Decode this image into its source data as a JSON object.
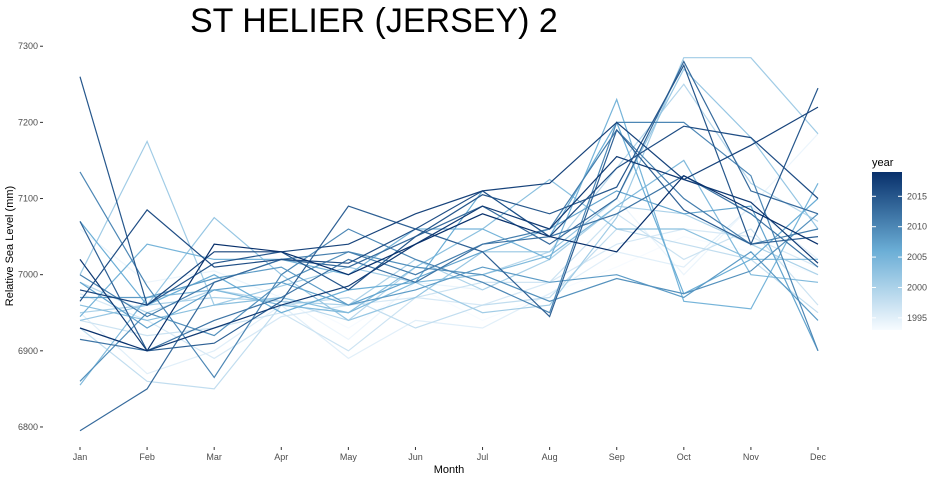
{
  "chart_data": {
    "type": "line",
    "title": "ST HELIER (JERSEY) 2",
    "xlabel": "Month",
    "ylabel": "Relative Sea Level (mm)",
    "categories": [
      "Jan",
      "Feb",
      "Mar",
      "Apr",
      "May",
      "Jun",
      "Jul",
      "Aug",
      "Sep",
      "Oct",
      "Nov",
      "Dec"
    ],
    "ylim": [
      6775,
      7320
    ],
    "yticks": [
      6800,
      6900,
      7000,
      7100,
      7200,
      7300
    ],
    "grid": false,
    "legend": {
      "title": "year",
      "position": "right",
      "range": [
        1993,
        2019
      ],
      "ticks": [
        1995,
        2000,
        2005,
        2010,
        2015
      ],
      "color_low": "#f7fbff",
      "color_high": "#08306b"
    },
    "series": [
      {
        "year": 1993,
        "values": [
          6920,
          6905,
          6935,
          6975,
          6930,
          6985,
          6940,
          6975,
          7010,
          7050,
          7030,
          7000
        ]
      },
      {
        "year": 1994,
        "values": [
          7060,
          6990,
          7005,
          6970,
          6915,
          6990,
          6980,
          7020,
          7100,
          7000,
          7090,
          7185
        ]
      },
      {
        "year": 1995,
        "values": [
          6950,
          6870,
          6900,
          6960,
          6890,
          6940,
          6930,
          6975,
          7030,
          7010,
          7090,
          7020
        ]
      },
      {
        "year": 1996,
        "values": [
          6975,
          6940,
          6890,
          6945,
          6960,
          6970,
          6960,
          6990,
          7040,
          7060,
          7050,
          7010
        ]
      },
      {
        "year": 1997,
        "values": [
          6940,
          6920,
          6930,
          6950,
          6900,
          6970,
          6990,
          6990,
          7080,
          7020,
          7060,
          6960
        ]
      },
      {
        "year": 1998,
        "values": [
          6930,
          6860,
          6850,
          6960,
          6970,
          6930,
          6960,
          6970,
          7060,
          7040,
          7020,
          6950
        ]
      },
      {
        "year": 1999,
        "values": [
          6990,
          6950,
          6980,
          6965,
          6940,
          7010,
          7000,
          7030,
          7140,
          7250,
          7120,
          7070
        ]
      },
      {
        "year": 2000,
        "values": [
          6950,
          6960,
          6970,
          6965,
          6960,
          7020,
          6980,
          7020,
          7090,
          7080,
          7040,
          7000
        ]
      },
      {
        "year": 2001,
        "values": [
          7000,
          7175,
          6960,
          6985,
          7010,
          6990,
          6950,
          6960,
          7075,
          7285,
          7285,
          7185
        ]
      },
      {
        "year": 2002,
        "values": [
          6940,
          6960,
          7075,
          7000,
          6940,
          6970,
          7030,
          7030,
          7100,
          7270,
          7180,
          7060
        ]
      },
      {
        "year": 2003,
        "values": [
          6960,
          6940,
          6960,
          6970,
          6950,
          7010,
          7060,
          7125,
          7060,
          7060,
          7020,
          7020
        ]
      },
      {
        "year": 2004,
        "values": [
          6855,
          6970,
          6980,
          6960,
          6950,
          6990,
          7000,
          7025,
          7090,
          7150,
          7000,
          6990
        ]
      },
      {
        "year": 2005,
        "values": [
          6945,
          7040,
          7020,
          7020,
          7000,
          7060,
          7060,
          7020,
          7230,
          6965,
          6955,
          7120
        ]
      },
      {
        "year": 2006,
        "values": [
          7070,
          6960,
          7000,
          6950,
          6980,
          6990,
          7110,
          7050,
          7200,
          6975,
          7020,
          7100
        ]
      },
      {
        "year": 2007,
        "values": [
          6990,
          6930,
          6980,
          6990,
          6960,
          6995,
          7030,
          7060,
          7110,
          7080,
          7090,
          6900
        ]
      },
      {
        "year": 2008,
        "values": [
          6970,
          6970,
          6995,
          7010,
          6960,
          6980,
          7010,
          6990,
          7000,
          6970,
          7030,
          6940
        ]
      },
      {
        "year": 2009,
        "values": [
          6860,
          6950,
          6920,
          6990,
          7030,
          7010,
          7000,
          6965,
          6995,
          6975,
          7005,
          7080
        ]
      },
      {
        "year": 2010,
        "values": [
          7135,
          6985,
          6865,
          7000,
          7060,
          7020,
          6990,
          6950,
          7200,
          7200,
          7130,
          6900
        ]
      },
      {
        "year": 2011,
        "values": [
          7000,
          6945,
          6990,
          7020,
          7030,
          7000,
          7040,
          7060,
          7190,
          7100,
          7040,
          7060
        ]
      },
      {
        "year": 2012,
        "values": [
          6915,
          6900,
          6940,
          6970,
          7020,
          6990,
          7040,
          7050,
          7080,
          7130,
          7080,
          7010
        ]
      },
      {
        "year": 2013,
        "values": [
          6795,
          6850,
          6990,
          7020,
          7010,
          7050,
          7090,
          7040,
          7100,
          7280,
          7110,
          7080
        ]
      },
      {
        "year": 2014,
        "values": [
          7070,
          6900,
          6910,
          6965,
          7090,
          7060,
          7030,
          6945,
          7190,
          7085,
          7040,
          7050
        ]
      },
      {
        "year": 2015,
        "values": [
          7260,
          6960,
          7015,
          7030,
          6980,
          7050,
          7105,
          7080,
          7115,
          7275,
          7040,
          7245
        ]
      },
      {
        "year": 2016,
        "values": [
          6965,
          7085,
          7010,
          7020,
          7015,
          7060,
          7110,
          7050,
          7140,
          7195,
          7180,
          7100
        ]
      },
      {
        "year": 2017,
        "values": [
          6980,
          6960,
          7030,
          7030,
          7040,
          7080,
          7110,
          7120,
          7200,
          7125,
          7170,
          7220
        ]
      },
      {
        "year": 2018,
        "values": [
          7020,
          6900,
          6930,
          6960,
          6985,
          7040,
          7090,
          7060,
          7155,
          7125,
          7095,
          7015
        ]
      },
      {
        "year": 2019,
        "values": [
          6930,
          6900,
          7040,
          7030,
          7000,
          7040,
          7080,
          7050,
          7030,
          7130,
          7085,
          7040
        ]
      }
    ]
  }
}
